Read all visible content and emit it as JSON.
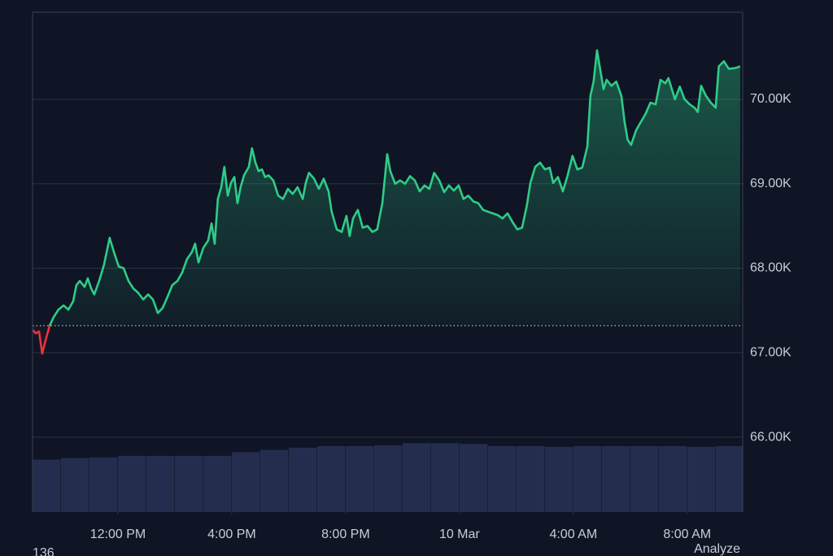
{
  "chart_data": {
    "type": "line",
    "color": "#2ecc87",
    "down_color": "#e8333f",
    "baseline": 67320,
    "grid": true,
    "xlim": [
      9,
      33.95
    ],
    "xticks": [
      {
        "value": 12,
        "label": "12:00 PM"
      },
      {
        "value": 16,
        "label": "4:00 PM"
      },
      {
        "value": 20,
        "label": "8:00 PM"
      },
      {
        "value": 24,
        "label": "10 Mar"
      },
      {
        "value": 28,
        "label": "4:00 AM"
      },
      {
        "value": 32,
        "label": "8:00 AM"
      }
    ],
    "ylim": [
      65114,
      71031
    ],
    "yticks": [
      {
        "value": 66000,
        "label": "66.00K"
      },
      {
        "value": 67000,
        "label": "67.00K"
      },
      {
        "value": 68000,
        "label": "68.00K"
      },
      {
        "value": 69000,
        "label": "69.00K"
      },
      {
        "value": 70000,
        "label": "70.00K"
      }
    ],
    "x": [
      9,
      9.11,
      9.23,
      9.34,
      9.46,
      9.6,
      9.74,
      9.91,
      10.09,
      10.26,
      10.43,
      10.54,
      10.66,
      10.83,
      10.94,
      11.06,
      11.17,
      11.34,
      11.51,
      11.71,
      11.86,
      12.03,
      12.2,
      12.37,
      12.54,
      12.71,
      12.89,
      13.06,
      13.23,
      13.4,
      13.57,
      13.74,
      13.91,
      14.09,
      14.26,
      14.43,
      14.6,
      14.71,
      14.83,
      15,
      15.17,
      15.29,
      15.4,
      15.51,
      15.63,
      15.74,
      15.86,
      15.97,
      16.09,
      16.2,
      16.31,
      16.43,
      16.6,
      16.71,
      16.83,
      16.94,
      17.06,
      17.17,
      17.29,
      17.46,
      17.63,
      17.8,
      17.97,
      18.14,
      18.31,
      18.49,
      18.6,
      18.71,
      18.89,
      19.06,
      19.23,
      19.4,
      19.51,
      19.69,
      19.86,
      20.03,
      20.14,
      20.26,
      20.43,
      20.6,
      20.77,
      20.94,
      21.11,
      21.29,
      21.46,
      21.57,
      21.74,
      21.91,
      22.09,
      22.26,
      22.43,
      22.6,
      22.77,
      22.94,
      23.11,
      23.29,
      23.46,
      23.63,
      23.8,
      23.97,
      24.14,
      24.31,
      24.49,
      24.66,
      24.83,
      25,
      25.17,
      25.34,
      25.51,
      25.69,
      25.86,
      26.03,
      26.2,
      26.37,
      26.49,
      26.66,
      26.83,
      27,
      27.17,
      27.29,
      27.46,
      27.63,
      27.8,
      27.97,
      28.14,
      28.31,
      28.49,
      28.6,
      28.71,
      28.83,
      28.94,
      29.06,
      29.17,
      29.34,
      29.51,
      29.69,
      29.8,
      29.91,
      30.03,
      30.2,
      30.37,
      30.54,
      30.71,
      30.89,
      31.06,
      31.23,
      31.34,
      31.46,
      31.57,
      31.74,
      31.91,
      32.09,
      32.26,
      32.37,
      32.49,
      32.66,
      32.83,
      33,
      33.11,
      33.29,
      33.46,
      33.69,
      33.86
    ],
    "values": [
      67270,
      67230,
      67250,
      66990,
      67150,
      67320,
      67420,
      67510,
      67560,
      67510,
      67610,
      67800,
      67850,
      67780,
      67880,
      67760,
      67690,
      67850,
      68040,
      68360,
      68190,
      68020,
      68000,
      67850,
      67760,
      67710,
      67630,
      67690,
      67630,
      67470,
      67530,
      67660,
      67800,
      67850,
      67950,
      68110,
      68190,
      68290,
      68070,
      68240,
      68330,
      68530,
      68290,
      68820,
      68960,
      69200,
      68860,
      69010,
      69080,
      68770,
      68960,
      69100,
      69200,
      69420,
      69250,
      69150,
      69170,
      69080,
      69100,
      69040,
      68860,
      68820,
      68940,
      68880,
      68960,
      68820,
      69010,
      69130,
      69060,
      68940,
      69060,
      68910,
      68670,
      68460,
      68430,
      68620,
      68380,
      68590,
      68690,
      68480,
      68500,
      68430,
      68460,
      68770,
      69350,
      69150,
      69000,
      69040,
      69000,
      69090,
      69040,
      68910,
      68980,
      68940,
      69130,
      69040,
      68900,
      68980,
      68920,
      68980,
      68820,
      68860,
      68790,
      68770,
      68690,
      68670,
      68650,
      68630,
      68590,
      68650,
      68550,
      68460,
      68480,
      68750,
      69010,
      69200,
      69250,
      69170,
      69190,
      69010,
      69080,
      68910,
      69100,
      69330,
      69170,
      69190,
      69440,
      70040,
      70210,
      70580,
      70360,
      70120,
      70230,
      70160,
      70210,
      70040,
      69730,
      69520,
      69460,
      69630,
      69730,
      69830,
      69960,
      69940,
      70230,
      70190,
      70250,
      70120,
      70000,
      70150,
      70000,
      69940,
      69900,
      69850,
      70160,
      70040,
      69960,
      69900,
      70390,
      70450,
      70360,
      70370,
      70390
    ],
    "volume": {
      "color": "#252d4f",
      "y2lim": [
        0,
        100
      ],
      "x": [
        9,
        10,
        11,
        12,
        13,
        14,
        15,
        16,
        17,
        18,
        19,
        20,
        21,
        22,
        23,
        24,
        25,
        26,
        27,
        28,
        29,
        30,
        31,
        32,
        33
      ],
      "values": [
        70,
        72,
        73,
        75,
        75,
        75,
        75,
        80,
        83,
        86,
        88,
        88,
        89,
        92,
        92,
        91,
        88,
        88,
        87,
        88,
        88,
        88,
        88,
        87,
        88
      ]
    },
    "footer_left": "136",
    "footer_right": "Analyze"
  }
}
